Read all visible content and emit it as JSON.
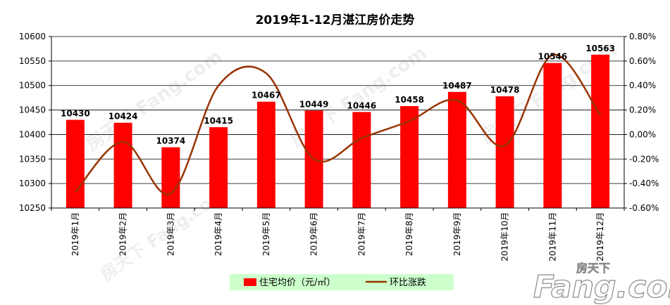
{
  "chart_data": {
    "type": "bar",
    "title": "2019年1-12月湛江房价走势",
    "categories": [
      "2019年1月",
      "2019年2月",
      "2019年3月",
      "2019年4月",
      "2019年5月",
      "2019年6月",
      "2019年7月",
      "2019年8月",
      "2019年9月",
      "2019年10月",
      "2019年11月",
      "2019年12月"
    ],
    "series": [
      {
        "name": "住宅均价（元/㎡）",
        "type": "bar",
        "axis": "left",
        "color": "#ff0000",
        "values": [
          10430,
          10424,
          10374,
          10415,
          10467,
          10449,
          10446,
          10458,
          10487,
          10478,
          10546,
          10563
        ]
      },
      {
        "name": "环比涨跌",
        "type": "line",
        "axis": "right",
        "color": "#993300",
        "smooth": true,
        "values": [
          -0.0047,
          -0.0006,
          -0.0048,
          0.004,
          0.005,
          -0.002,
          -0.0003,
          0.0011,
          0.0028,
          -0.0009,
          0.0065,
          0.0016
        ]
      }
    ],
    "ylim_left": [
      10250,
      10600
    ],
    "yticks_left": [
      "10250",
      "10300",
      "10350",
      "10400",
      "10450",
      "10500",
      "10550",
      "10600"
    ],
    "ylim_right": [
      -0.006,
      0.008
    ],
    "yticks_right": [
      "-0.60%",
      "-0.40%",
      "-0.20%",
      "0.00%",
      "0.20%",
      "0.40%",
      "0.60%",
      "0.80%"
    ],
    "data_labels": [
      "10430",
      "10424",
      "10374",
      "10415",
      "10467",
      "10449",
      "10446",
      "10458",
      "10487",
      "10478",
      "10546",
      "10563"
    ],
    "grid": true,
    "legend_position": "bottom"
  },
  "watermark": {
    "text": "房天下 Fang.com",
    "logo_text": "Fang.com",
    "logo_cn": "房天下"
  }
}
